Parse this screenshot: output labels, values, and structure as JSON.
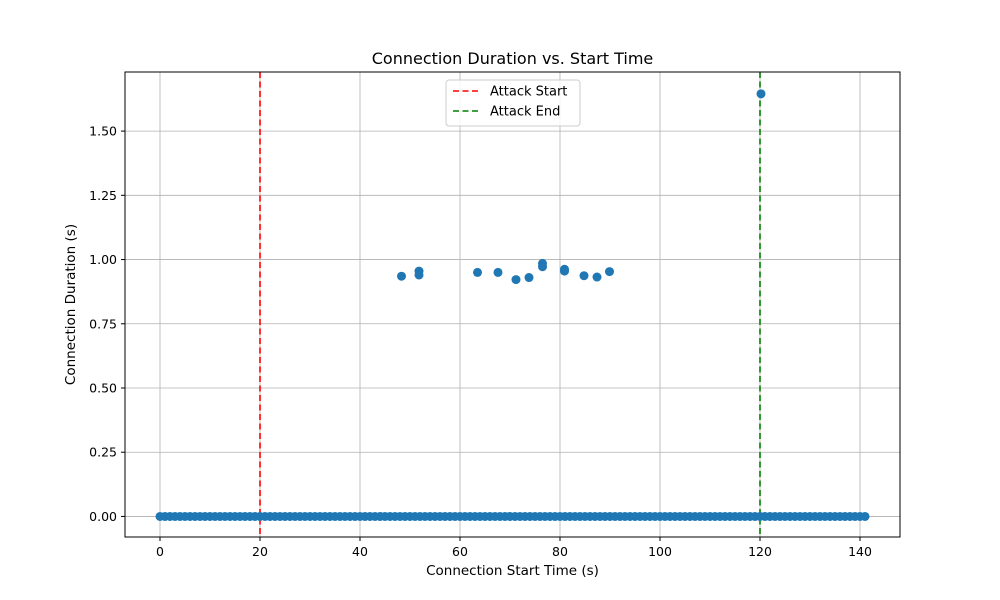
{
  "chart_data": {
    "type": "scatter",
    "title": "Connection Duration vs. Start Time",
    "xlabel": "Connection Start Time (s)",
    "ylabel": "Connection Duration (s)",
    "xlim": [
      -7,
      148
    ],
    "ylim": [
      -0.08,
      1.73
    ],
    "xticks": [
      0,
      20,
      40,
      60,
      80,
      100,
      120,
      140
    ],
    "xtick_labels": [
      "0",
      "20",
      "40",
      "60",
      "80",
      "100",
      "120",
      "140"
    ],
    "yticks": [
      0.0,
      0.25,
      0.5,
      0.75,
      1.0,
      1.25,
      1.5
    ],
    "ytick_labels": [
      "0.00",
      "0.25",
      "0.50",
      "0.75",
      "1.00",
      "1.25",
      "1.50"
    ],
    "grid": true,
    "legend_position": "upper center",
    "baseline_series": {
      "x_start": 0,
      "x_end": 141,
      "x_step": 1,
      "y": 0.0,
      "color": "#1f77b4"
    },
    "points": [
      {
        "x": 48.3,
        "y": 0.935
      },
      {
        "x": 51.8,
        "y": 0.955
      },
      {
        "x": 51.8,
        "y": 0.94
      },
      {
        "x": 63.5,
        "y": 0.95
      },
      {
        "x": 67.6,
        "y": 0.95
      },
      {
        "x": 71.2,
        "y": 0.922
      },
      {
        "x": 73.8,
        "y": 0.93
      },
      {
        "x": 76.5,
        "y": 0.985
      },
      {
        "x": 76.5,
        "y": 0.972
      },
      {
        "x": 80.9,
        "y": 0.962
      },
      {
        "x": 80.9,
        "y": 0.955
      },
      {
        "x": 84.8,
        "y": 0.937
      },
      {
        "x": 87.4,
        "y": 0.932
      },
      {
        "x": 89.9,
        "y": 0.953
      },
      {
        "x": 120.2,
        "y": 1.645
      }
    ],
    "point_color": "#1f77b4",
    "vlines": [
      {
        "x": 20,
        "label": "Attack Start",
        "color": "#ff0000"
      },
      {
        "x": 120,
        "label": "Attack End",
        "color": "#008000"
      }
    ]
  }
}
